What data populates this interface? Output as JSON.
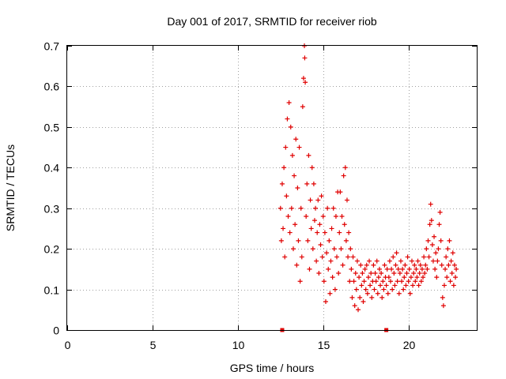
{
  "chart_data": {
    "type": "scatter",
    "title": "Day 001 of 2017, SRMTID for receiver riob",
    "xlabel": "GPS time / hours",
    "ylabel": "SRMTID / TECUs",
    "xlim": [
      0,
      24
    ],
    "ylim": [
      0,
      0.7
    ],
    "xticks": [
      0,
      5,
      10,
      15,
      20
    ],
    "yticks": [
      0,
      0.1,
      0.2,
      0.3,
      0.4,
      0.5,
      0.6,
      0.7
    ],
    "ytick_labels": [
      "0",
      "0.1",
      "0.2",
      "0.3",
      "0.4",
      "0.5",
      "0.6",
      "0.7"
    ],
    "grid": true,
    "marker": "+",
    "series": [
      {
        "name": "SRMTID",
        "color": "#e00000",
        "points": [
          [
            12.5,
            0.3
          ],
          [
            12.55,
            0.22
          ],
          [
            12.6,
            0.36
          ],
          [
            12.65,
            0.25
          ],
          [
            12.7,
            0.4
          ],
          [
            12.75,
            0.18
          ],
          [
            12.8,
            0.45
          ],
          [
            12.85,
            0.33
          ],
          [
            12.9,
            0.52
          ],
          [
            12.95,
            0.28
          ],
          [
            13.0,
            0.56
          ],
          [
            13.05,
            0.24
          ],
          [
            13.1,
            0.5
          ],
          [
            13.15,
            0.3
          ],
          [
            13.2,
            0.43
          ],
          [
            13.25,
            0.2
          ],
          [
            13.3,
            0.38
          ],
          [
            13.35,
            0.26
          ],
          [
            13.4,
            0.47
          ],
          [
            13.45,
            0.16
          ],
          [
            13.5,
            0.35
          ],
          [
            13.55,
            0.22
          ],
          [
            13.6,
            0.45
          ],
          [
            13.65,
            0.12
          ],
          [
            13.7,
            0.3
          ],
          [
            13.75,
            0.18
          ],
          [
            13.8,
            0.55
          ],
          [
            13.85,
            0.62
          ],
          [
            13.9,
            0.7
          ],
          [
            13.92,
            0.67
          ],
          [
            13.95,
            0.61
          ],
          [
            14.0,
            0.28
          ],
          [
            14.05,
            0.36
          ],
          [
            14.1,
            0.22
          ],
          [
            14.15,
            0.43
          ],
          [
            14.2,
            0.15
          ],
          [
            14.25,
            0.32
          ],
          [
            14.3,
            0.25
          ],
          [
            14.35,
            0.4
          ],
          [
            14.4,
            0.2
          ],
          [
            14.45,
            0.36
          ],
          [
            14.5,
            0.27
          ],
          [
            14.55,
            0.3
          ],
          [
            14.6,
            0.17
          ],
          [
            14.65,
            0.24
          ],
          [
            14.7,
            0.32
          ],
          [
            14.75,
            0.14
          ],
          [
            14.8,
            0.26
          ],
          [
            14.85,
            0.21
          ],
          [
            14.9,
            0.33
          ],
          [
            14.95,
            0.18
          ],
          [
            15.0,
            0.28
          ],
          [
            15.05,
            0.12
          ],
          [
            15.1,
            0.24
          ],
          [
            15.15,
            0.07
          ],
          [
            15.2,
            0.19
          ],
          [
            15.25,
            0.3
          ],
          [
            15.3,
            0.15
          ],
          [
            15.35,
            0.22
          ],
          [
            15.4,
            0.09
          ],
          [
            15.45,
            0.17
          ],
          [
            15.5,
            0.25
          ],
          [
            15.55,
            0.13
          ],
          [
            15.6,
            0.3
          ],
          [
            15.65,
            0.2
          ],
          [
            15.7,
            0.1
          ],
          [
            15.75,
            0.28
          ],
          [
            15.8,
            0.18
          ],
          [
            15.85,
            0.34
          ],
          [
            15.9,
            0.14
          ],
          [
            15.95,
            0.24
          ],
          [
            16.0,
            0.34
          ],
          [
            16.05,
            0.2
          ],
          [
            16.1,
            0.28
          ],
          [
            16.15,
            0.16
          ],
          [
            16.2,
            0.38
          ],
          [
            16.25,
            0.26
          ],
          [
            16.3,
            0.4
          ],
          [
            16.35,
            0.22
          ],
          [
            16.4,
            0.32
          ],
          [
            16.45,
            0.18
          ],
          [
            16.5,
            0.24
          ],
          [
            16.55,
            0.12
          ],
          [
            16.6,
            0.2
          ],
          [
            16.65,
            0.15
          ],
          [
            16.7,
            0.08
          ],
          [
            16.75,
            0.18
          ],
          [
            16.8,
            0.12
          ],
          [
            16.85,
            0.06
          ],
          [
            16.9,
            0.14
          ],
          [
            16.95,
            0.1
          ],
          [
            17.0,
            0.17
          ],
          [
            17.05,
            0.05
          ],
          [
            17.1,
            0.13
          ],
          [
            17.15,
            0.08
          ],
          [
            17.2,
            0.16
          ],
          [
            17.25,
            0.11
          ],
          [
            17.3,
            0.14
          ],
          [
            17.35,
            0.07
          ],
          [
            17.4,
            0.12
          ],
          [
            17.45,
            0.15
          ],
          [
            17.5,
            0.1
          ],
          [
            17.55,
            0.16
          ],
          [
            17.6,
            0.09
          ],
          [
            17.65,
            0.13
          ],
          [
            17.7,
            0.17
          ],
          [
            17.75,
            0.11
          ],
          [
            17.8,
            0.14
          ],
          [
            17.85,
            0.08
          ],
          [
            17.9,
            0.12
          ],
          [
            17.95,
            0.16
          ],
          [
            18.0,
            0.1
          ],
          [
            18.05,
            0.14
          ],
          [
            18.1,
            0.12
          ],
          [
            18.15,
            0.17
          ],
          [
            18.2,
            0.09
          ],
          [
            18.25,
            0.13
          ],
          [
            18.3,
            0.15
          ],
          [
            18.35,
            0.11
          ],
          [
            18.4,
            0.14
          ],
          [
            18.45,
            0.08
          ],
          [
            18.5,
            0.12
          ],
          [
            18.55,
            0.1
          ],
          [
            18.6,
            0.16
          ],
          [
            18.65,
            0.13
          ],
          [
            18.7,
            0.11
          ],
          [
            18.75,
            0.15
          ],
          [
            18.8,
            0.09
          ],
          [
            18.85,
            0.13
          ],
          [
            18.9,
            0.17
          ],
          [
            18.95,
            0.12
          ],
          [
            19.0,
            0.15
          ],
          [
            19.05,
            0.1
          ],
          [
            19.1,
            0.18
          ],
          [
            19.15,
            0.14
          ],
          [
            19.2,
            0.11
          ],
          [
            19.25,
            0.16
          ],
          [
            19.3,
            0.19
          ],
          [
            19.35,
            0.12
          ],
          [
            19.4,
            0.15
          ],
          [
            19.45,
            0.09
          ],
          [
            19.5,
            0.14
          ],
          [
            19.55,
            0.17
          ],
          [
            19.6,
            0.12
          ],
          [
            19.65,
            0.15
          ],
          [
            19.7,
            0.1
          ],
          [
            19.75,
            0.13
          ],
          [
            19.8,
            0.16
          ],
          [
            19.85,
            0.11
          ],
          [
            19.9,
            0.14
          ],
          [
            19.95,
            0.18
          ],
          [
            20.0,
            0.12
          ],
          [
            20.05,
            0.15
          ],
          [
            20.1,
            0.09
          ],
          [
            20.15,
            0.13
          ],
          [
            20.2,
            0.17
          ],
          [
            20.25,
            0.11
          ],
          [
            20.3,
            0.14
          ],
          [
            20.35,
            0.16
          ],
          [
            20.4,
            0.12
          ],
          [
            20.45,
            0.15
          ],
          [
            20.5,
            0.13
          ],
          [
            20.55,
            0.17
          ],
          [
            20.6,
            0.11
          ],
          [
            20.65,
            0.14
          ],
          [
            20.7,
            0.16
          ],
          [
            20.75,
            0.12
          ],
          [
            20.8,
            0.15
          ],
          [
            20.85,
            0.13
          ],
          [
            20.9,
            0.18
          ],
          [
            20.95,
            0.14
          ],
          [
            21.0,
            0.16
          ],
          [
            21.05,
            0.2
          ],
          [
            21.1,
            0.15
          ],
          [
            21.15,
            0.22
          ],
          [
            21.2,
            0.18
          ],
          [
            21.25,
            0.26
          ],
          [
            21.3,
            0.31
          ],
          [
            21.35,
            0.27
          ],
          [
            21.4,
            0.21
          ],
          [
            21.45,
            0.17
          ],
          [
            21.5,
            0.23
          ],
          [
            21.55,
            0.15
          ],
          [
            21.6,
            0.19
          ],
          [
            21.65,
            0.13
          ],
          [
            21.7,
            0.17
          ],
          [
            21.75,
            0.2
          ],
          [
            21.8,
            0.26
          ],
          [
            21.85,
            0.29
          ],
          [
            21.9,
            0.22
          ],
          [
            21.95,
            0.16
          ],
          [
            22.0,
            0.08
          ],
          [
            22.05,
            0.06
          ],
          [
            22.1,
            0.11
          ],
          [
            22.15,
            0.15
          ],
          [
            22.2,
            0.18
          ],
          [
            22.25,
            0.13
          ],
          [
            22.3,
            0.2
          ],
          [
            22.35,
            0.16
          ],
          [
            22.4,
            0.22
          ],
          [
            22.45,
            0.12
          ],
          [
            22.5,
            0.17
          ],
          [
            22.55,
            0.14
          ],
          [
            22.6,
            0.19
          ],
          [
            22.65,
            0.11
          ],
          [
            22.7,
            0.16
          ],
          [
            22.75,
            0.13
          ],
          [
            22.8,
            0.15
          ]
        ]
      }
    ],
    "zero_markers": [
      12.6,
      18.7
    ]
  }
}
